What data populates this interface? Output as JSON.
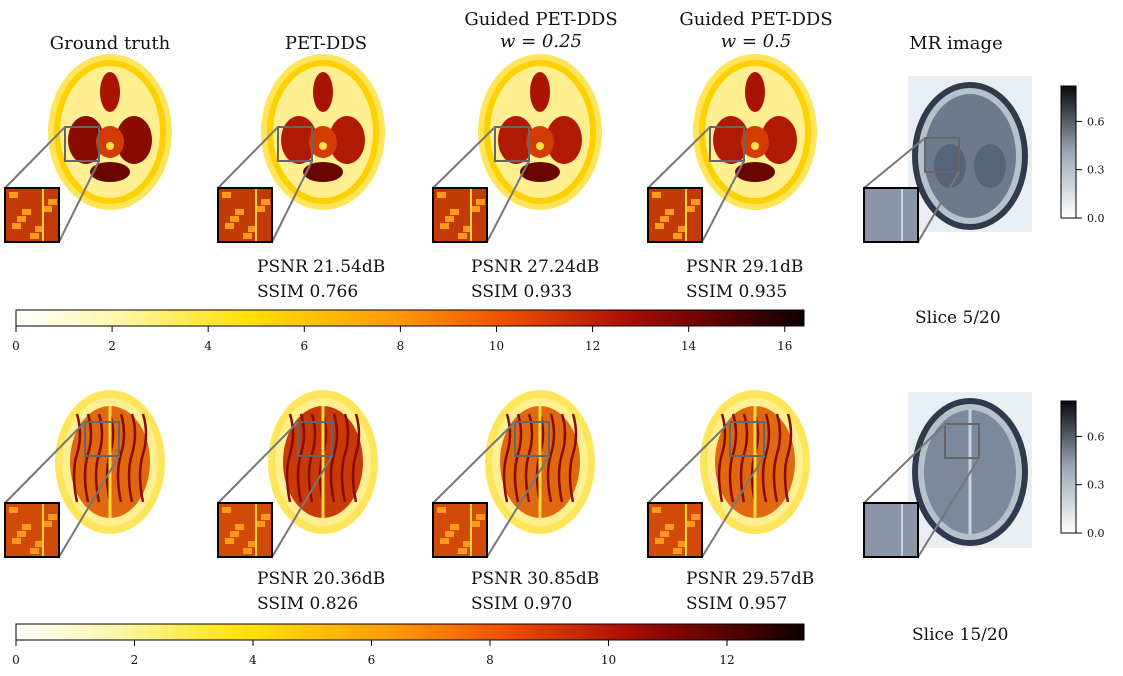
{
  "headers": [
    {
      "line1": "Ground truth",
      "line2": ""
    },
    {
      "line1": "PET-DDS",
      "line2": ""
    },
    {
      "line1": "Guided PET-DDS",
      "line2": "w = 0.25"
    },
    {
      "line1": "Guided PET-DDS",
      "line2": "w = 0.5"
    },
    {
      "line1": "MR image",
      "line2": ""
    }
  ],
  "rows": [
    {
      "slice_label": "Slice 5/20",
      "metrics": [
        {
          "psnr": "PSNR 21.54dB",
          "ssim": "SSIM 0.766"
        },
        {
          "psnr": "PSNR 27.24dB",
          "ssim": "SSIM 0.933"
        },
        {
          "psnr": "PSNR 29.1dB",
          "ssim": "SSIM 0.935"
        }
      ],
      "colorbar": {
        "ticks": [
          "0",
          "2",
          "4",
          "6",
          "8",
          "10",
          "12",
          "14",
          "16"
        ],
        "max": 16.4,
        "colormap": "afmhot_r"
      }
    },
    {
      "slice_label": "Slice 15/20",
      "metrics": [
        {
          "psnr": "PSNR 20.36dB",
          "ssim": "SSIM 0.826"
        },
        {
          "psnr": "PSNR 30.85dB",
          "ssim": "SSIM 0.970"
        },
        {
          "psnr": "PSNR 29.57dB",
          "ssim": "SSIM 0.957"
        }
      ],
      "colorbar": {
        "ticks": [
          "0",
          "2",
          "4",
          "6",
          "8",
          "10",
          "12"
        ],
        "max": 13.3,
        "colormap": "afmhot_r"
      }
    }
  ],
  "mr_colorbar": {
    "ticks": [
      "0.0",
      "0.3",
      "0.6"
    ],
    "colormap": "bone_r"
  }
}
